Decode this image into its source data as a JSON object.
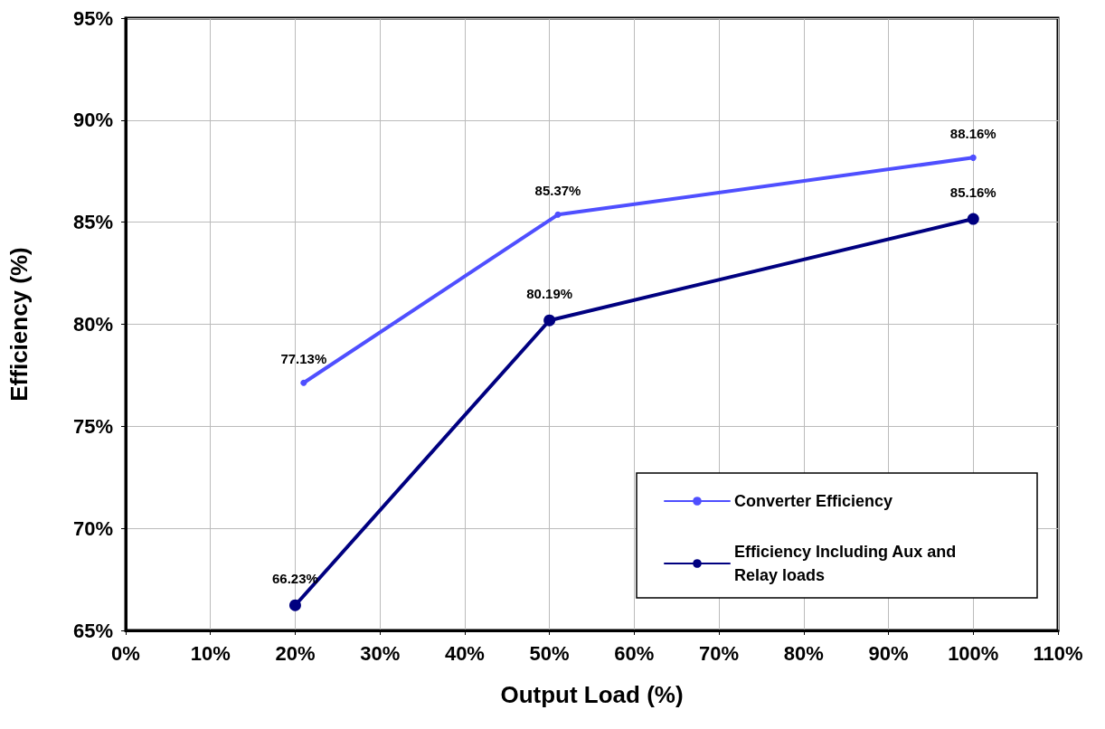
{
  "chart_data": {
    "type": "line",
    "xlabel": "Output Load (%)",
    "ylabel": "Efficiency (%)",
    "series": [
      {
        "name": "Converter Efficiency",
        "color": "#4f4fff",
        "x": [
          21,
          51,
          100
        ],
        "values": [
          77.13,
          85.37,
          88.16
        ],
        "value_labels": [
          "77.13%",
          "85.37%",
          "88.16%"
        ]
      },
      {
        "name": "Efficiency Including Aux and Relay loads",
        "color": "#000080",
        "x": [
          20,
          50,
          100
        ],
        "values": [
          66.23,
          80.19,
          85.16
        ],
        "value_labels": [
          "66.23%",
          "80.19%",
          "85.16%"
        ]
      }
    ],
    "xlim": [
      0,
      110
    ],
    "xticks": [
      {
        "value": 0,
        "label": "0%"
      },
      {
        "value": 10,
        "label": "10%"
      },
      {
        "value": 20,
        "label": "20%"
      },
      {
        "value": 30,
        "label": "30%"
      },
      {
        "value": 40,
        "label": "40%"
      },
      {
        "value": 50,
        "label": "50%"
      },
      {
        "value": 60,
        "label": "60%"
      },
      {
        "value": 70,
        "label": "70%"
      },
      {
        "value": 80,
        "label": "80%"
      },
      {
        "value": 90,
        "label": "90%"
      },
      {
        "value": 100,
        "label": "100%"
      },
      {
        "value": 110,
        "label": "110%"
      }
    ],
    "ylim": [
      65,
      95
    ],
    "yticks": [
      {
        "value": 65,
        "label": "65%"
      },
      {
        "value": 70,
        "label": "70%"
      },
      {
        "value": 75,
        "label": "75%"
      },
      {
        "value": 80,
        "label": "80%"
      },
      {
        "value": 85,
        "label": "85%"
      },
      {
        "value": 90,
        "label": "90%"
      },
      {
        "value": 95,
        "label": "95%"
      }
    ],
    "grid": true,
    "legend": "bottom right",
    "marker": "circle",
    "line_style": "solid"
  }
}
